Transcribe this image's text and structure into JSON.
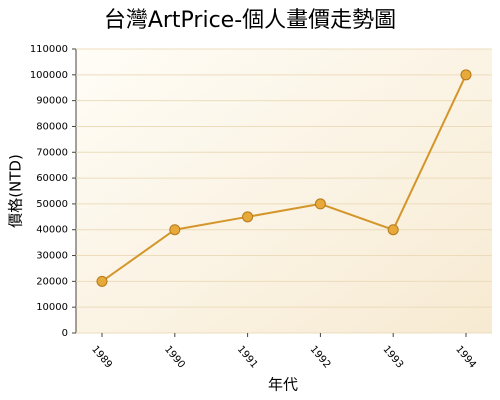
{
  "chart_data": {
    "type": "line",
    "title": "台灣ArtPrice-個人畫價走勢圖",
    "x_label": "年代",
    "y_label": "價格(NTD)",
    "categories": [
      "1989",
      "1990",
      "1991",
      "1992",
      "1993",
      "1994"
    ],
    "series": [
      {
        "name": "價格",
        "color": "#d4962a",
        "values": [
          20000,
          40000,
          45000,
          50000,
          40000,
          100000
        ]
      }
    ],
    "ylim": [
      0,
      110000
    ],
    "yticks": [
      0,
      10000,
      20000,
      30000,
      40000,
      50000,
      60000,
      70000,
      80000,
      90000,
      100000,
      110000
    ],
    "grid": true
  }
}
